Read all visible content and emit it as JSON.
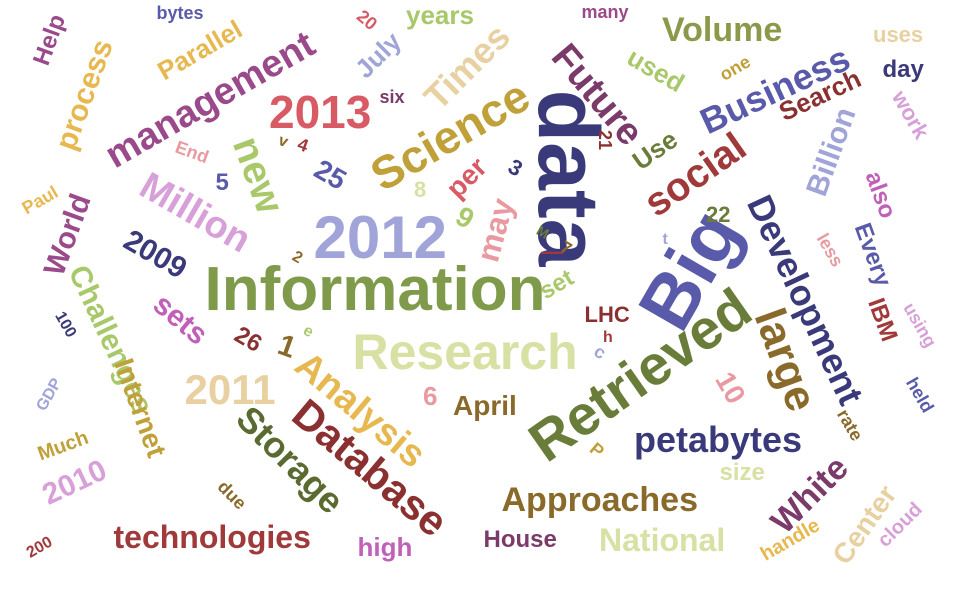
{
  "words": [
    {
      "text": "data",
      "color": "#3a3a7a",
      "weight": 98
    },
    {
      "text": "Big",
      "color": "#5a5aaa",
      "weight": 92
    },
    {
      "text": "Information",
      "color": "#7e9a4a",
      "weight": 80
    },
    {
      "text": "2012",
      "color": "#a0a4d8",
      "weight": 78
    },
    {
      "text": "Retrieved",
      "color": "#6a7c3a",
      "weight": 74
    },
    {
      "text": "Research",
      "color": "#d8e0a4",
      "weight": 66
    },
    {
      "text": "Science",
      "color": "#c0a038",
      "weight": 60
    },
    {
      "text": "2013",
      "color": "#d85a64",
      "weight": 58
    },
    {
      "text": "management",
      "color": "#9a4a8a",
      "weight": 56
    },
    {
      "text": "Database",
      "color": "#8a3030",
      "weight": 56
    },
    {
      "text": "Development",
      "color": "#3a3a7a",
      "weight": 54
    },
    {
      "text": "large",
      "color": "#8a6a2a",
      "weight": 54
    },
    {
      "text": "Business",
      "color": "#5a5aaa",
      "weight": 50
    },
    {
      "text": "social",
      "color": "#a03a3a",
      "weight": 50
    },
    {
      "text": "Analysis",
      "color": "#e8b850",
      "weight": 50
    },
    {
      "text": "Storage",
      "color": "#5a6a30",
      "weight": 50
    },
    {
      "text": "2011",
      "color": "#e8d0a0",
      "weight": 48
    },
    {
      "text": "petabytes",
      "color": "#3a3a7a",
      "weight": 46
    },
    {
      "text": "Approaches",
      "color": "#8a6a2a",
      "weight": 46
    },
    {
      "text": "Million",
      "color": "#d8a0d8",
      "weight": 46
    },
    {
      "text": "Future",
      "color": "#7a3a6a",
      "weight": 44
    },
    {
      "text": "new",
      "color": "#a8c86a",
      "weight": 44
    },
    {
      "text": "Volume",
      "color": "#8a9a4a",
      "weight": 42
    },
    {
      "text": "Times",
      "color": "#e8d0a0",
      "weight": 42
    },
    {
      "text": "Challenges",
      "color": "#a8c86a",
      "weight": 42
    },
    {
      "text": "Internet",
      "color": "#c0a038",
      "weight": 42
    },
    {
      "text": "technologies",
      "color": "#a03a3a",
      "weight": 42
    },
    {
      "text": "National",
      "color": "#d8e0a4",
      "weight": 40
    },
    {
      "text": "White",
      "color": "#7a3a6a",
      "weight": 40
    },
    {
      "text": "process",
      "color": "#e8b850",
      "weight": 40
    },
    {
      "text": "World",
      "color": "#9a4a8a",
      "weight": 40
    },
    {
      "text": "may",
      "color": "#e89aa0",
      "weight": 40
    },
    {
      "text": "Billion",
      "color": "#a0a4d8",
      "weight": 38
    },
    {
      "text": "Search",
      "color": "#8a3030",
      "weight": 36
    },
    {
      "text": "Center",
      "color": "#e8d0a0",
      "weight": 36
    },
    {
      "text": "Parallel",
      "color": "#e8b850",
      "weight": 36
    },
    {
      "text": "Every",
      "color": "#5a5aaa",
      "weight": 36
    },
    {
      "text": "2010",
      "color": "#d8a0d8",
      "weight": 36
    },
    {
      "text": "sets",
      "color": "#c060b8",
      "weight": 36
    },
    {
      "text": "2009",
      "color": "#3a3a7a",
      "weight": 34
    },
    {
      "text": "used",
      "color": "#a8c86a",
      "weight": 34
    },
    {
      "text": "per",
      "color": "#d85a64",
      "weight": 34
    },
    {
      "text": "House",
      "color": "#7a3a6a",
      "weight": 32
    },
    {
      "text": "Use",
      "color": "#6a7c3a",
      "weight": 32
    },
    {
      "text": "also",
      "color": "#c060b8",
      "weight": 32
    },
    {
      "text": "April",
      "color": "#8a6a2a",
      "weight": 32
    },
    {
      "text": "July",
      "color": "#a0a4d8",
      "weight": 30
    },
    {
      "text": "years",
      "color": "#a8c86a",
      "weight": 30
    },
    {
      "text": "high",
      "color": "#c060b8",
      "weight": 30
    },
    {
      "text": "IBM",
      "color": "#a03a3a",
      "weight": 30
    },
    {
      "text": "work",
      "color": "#d8a0d8",
      "weight": 30
    },
    {
      "text": "size",
      "color": "#d8e0a4",
      "weight": 30
    },
    {
      "text": "Help",
      "color": "#9a4a8a",
      "weight": 28
    },
    {
      "text": "LHC",
      "color": "#8a3030",
      "weight": 28
    },
    {
      "text": "set",
      "color": "#a8c86a",
      "weight": 28
    },
    {
      "text": "day",
      "color": "#3a3a7a",
      "weight": 28
    },
    {
      "text": "uses",
      "color": "#e8d0a0",
      "weight": 28
    },
    {
      "text": "Much",
      "color": "#c0a038",
      "weight": 26
    },
    {
      "text": "handle",
      "color": "#e8b850",
      "weight": 26
    },
    {
      "text": "cloud",
      "color": "#d8a0d8",
      "weight": 26
    },
    {
      "text": "less",
      "color": "#e89aa0",
      "weight": 24
    },
    {
      "text": "using",
      "color": "#d8a0d8",
      "weight": 24
    },
    {
      "text": "held",
      "color": "#5a5aaa",
      "weight": 24
    },
    {
      "text": "rate",
      "color": "#8a6a2a",
      "weight": 24
    },
    {
      "text": "due",
      "color": "#8a6a2a",
      "weight": 24
    },
    {
      "text": "one",
      "color": "#c0a038",
      "weight": 24
    },
    {
      "text": "many",
      "color": "#9a4a8a",
      "weight": 22
    },
    {
      "text": "bytes",
      "color": "#5a5aaa",
      "weight": 22
    },
    {
      "text": "End",
      "color": "#e89aa0",
      "weight": 22
    },
    {
      "text": "six",
      "color": "#7a3a6a",
      "weight": 22
    },
    {
      "text": "Paul",
      "color": "#e8b850",
      "weight": 22
    },
    {
      "text": "GDP",
      "color": "#a0a4d8",
      "weight": 20
    },
    {
      "text": "25",
      "color": "#5a5aaa",
      "weight": 28
    },
    {
      "text": "26",
      "color": "#8a3030",
      "weight": 26
    },
    {
      "text": "22",
      "color": "#6a7c3a",
      "weight": 24
    },
    {
      "text": "21",
      "color": "#8a3030",
      "weight": 22
    },
    {
      "text": "20",
      "color": "#d85a64",
      "weight": 22
    },
    {
      "text": "100",
      "color": "#3a3a7a",
      "weight": 20
    },
    {
      "text": "200",
      "color": "#a03a3a",
      "weight": 20
    },
    {
      "text": "10",
      "color": "#e89aa0",
      "weight": 28
    },
    {
      "text": "9",
      "color": "#a8c86a",
      "weight": 28
    },
    {
      "text": "8",
      "color": "#d8e0a4",
      "weight": 24
    },
    {
      "text": "6",
      "color": "#e89aa0",
      "weight": 28
    },
    {
      "text": "5",
      "color": "#5a5aaa",
      "weight": 26
    },
    {
      "text": "4",
      "color": "#a03a3a",
      "weight": 20
    },
    {
      "text": "3",
      "color": "#3a3a7a",
      "weight": 24
    },
    {
      "text": "2",
      "color": "#8a6a2a",
      "weight": 18
    },
    {
      "text": "1",
      "color": "#8a6a2a",
      "weight": 30
    },
    {
      "text": "7",
      "color": "#8a6a2a",
      "weight": 20
    },
    {
      "text": "v",
      "color": "#8a6a2a",
      "weight": 18
    },
    {
      "text": "t",
      "color": "#a0a4d8",
      "weight": 18
    },
    {
      "text": "e",
      "color": "#a8c86a",
      "weight": 18
    },
    {
      "text": "P",
      "color": "#c0a038",
      "weight": 20
    },
    {
      "text": "c",
      "color": "#a0a4d8",
      "weight": 20
    },
    {
      "text": "h",
      "color": "#a03a3a",
      "weight": 18
    },
    {
      "text": "M",
      "color": "#6a7c3a",
      "weight": 16
    },
    {
      "text": "—",
      "color": "#a03a3a",
      "weight": 24
    }
  ]
}
